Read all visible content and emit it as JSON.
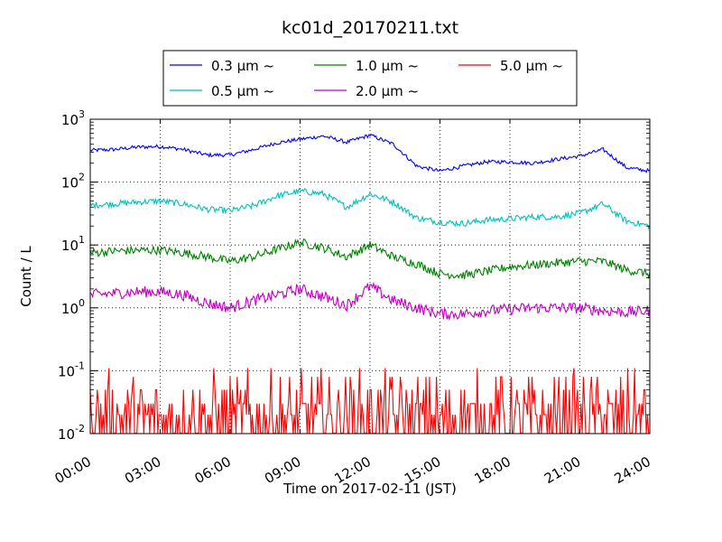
{
  "chart_data": {
    "type": "line",
    "title": "kc01d_20170211.txt",
    "xlabel": "Time on 2017-02-11 (JST)",
    "ylabel": "Count / L",
    "yscale": "log",
    "ylim": [
      0.01,
      1000
    ],
    "xlim": [
      "00:00",
      "24:00"
    ],
    "x_ticks": [
      "00:00",
      "03:00",
      "06:00",
      "09:00",
      "12:00",
      "15:00",
      "18:00",
      "21:00",
      "24:00"
    ],
    "y_ticks": [
      {
        "base": "10",
        "exp": "-2"
      },
      {
        "base": "10",
        "exp": "-1"
      },
      {
        "base": "10",
        "exp": "0"
      },
      {
        "base": "10",
        "exp": "1"
      },
      {
        "base": "10",
        "exp": "2"
      },
      {
        "base": "10",
        "exp": "3"
      }
    ],
    "grid": true,
    "legend_position": "top, above plot",
    "x_hours": [
      0,
      1,
      2,
      3,
      4,
      5,
      6,
      7,
      8,
      9,
      10,
      11,
      12,
      13,
      14,
      15,
      16,
      17,
      18,
      19,
      20,
      21,
      22,
      23,
      24
    ],
    "series": [
      {
        "name": "0.3 μm ~",
        "color": "#0000ff",
        "values": [
          320,
          330,
          360,
          370,
          330,
          270,
          270,
          330,
          420,
          480,
          540,
          430,
          560,
          400,
          180,
          150,
          180,
          210,
          210,
          200,
          230,
          260,
          330,
          170,
          150
        ]
      },
      {
        "name": "0.5 μm ~",
        "color": "#00bfbf",
        "values": [
          43,
          45,
          48,
          50,
          45,
          37,
          35,
          42,
          60,
          72,
          65,
          40,
          65,
          48,
          27,
          23,
          22,
          25,
          26,
          28,
          28,
          32,
          45,
          24,
          20
        ]
      },
      {
        "name": "1.0 μm ~",
        "color": "#008000",
        "values": [
          7.5,
          8,
          8.2,
          8.3,
          7.5,
          6.5,
          5.5,
          6.5,
          8.5,
          11,
          9,
          6.5,
          10,
          6.5,
          5,
          3.5,
          3.3,
          3.8,
          4.5,
          4.8,
          5.2,
          5.5,
          5.5,
          4,
          3.5
        ]
      },
      {
        "name": "2.0 μm ~",
        "color": "#bf00bf",
        "values": [
          1.6,
          1.7,
          1.8,
          1.8,
          1.6,
          1.2,
          1.0,
          1.3,
          1.6,
          2.0,
          1.5,
          1.1,
          2.2,
          1.3,
          1.0,
          0.8,
          0.8,
          0.9,
          0.95,
          1.0,
          1.0,
          1.0,
          0.9,
          0.85,
          0.9
        ]
      },
      {
        "name": "5.0 μm ~",
        "color": "#ff0000",
        "values": [
          0.03,
          0.03,
          0.035,
          0.03,
          0.025,
          0.025,
          0.04,
          0.035,
          0.035,
          0.04,
          0.04,
          0.04,
          0.045,
          0.04,
          0.04,
          0.03,
          0.03,
          0.035,
          0.04,
          0.04,
          0.035,
          0.035,
          0.035,
          0.03,
          0.03
        ]
      }
    ]
  }
}
